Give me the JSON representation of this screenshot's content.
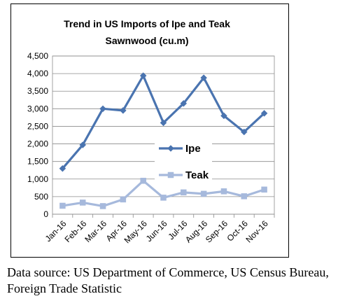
{
  "chart_data": {
    "type": "line",
    "title": "Trend in US Imports of Ipe and Teak",
    "subtitle": "Sawnwood (cu.m)",
    "categories": [
      "Jan-16",
      "Feb-16",
      "Mar-16",
      "Apr-16",
      "May-16",
      "Jun-16",
      "Jul-16",
      "Aug-16",
      "Sep-16",
      "Oct-16",
      "Nov-16"
    ],
    "series": [
      {
        "name": "Ipe",
        "values": [
          1300,
          1970,
          3000,
          2950,
          3940,
          2600,
          3150,
          3880,
          2800,
          2340,
          2870
        ],
        "color": "#4a74b0",
        "marker": "diamond"
      },
      {
        "name": "Teak",
        "values": [
          240,
          330,
          230,
          420,
          950,
          470,
          620,
          580,
          650,
          510,
          700
        ],
        "color": "#a6b9dc",
        "marker": "square"
      }
    ],
    "ylim": [
      0,
      4500
    ],
    "yticks": [
      "0",
      "500",
      "1,000",
      "1,500",
      "2,000",
      "2,500",
      "3,000",
      "3,500",
      "4,000",
      "4,500"
    ],
    "yticks_values": [
      0,
      500,
      1000,
      1500,
      2000,
      2500,
      3000,
      3500,
      4000,
      4500
    ],
    "grid": true,
    "legend": "center-right, inside plot"
  },
  "caption": {
    "line1": "Data source: US Department of Commerce, US Census Bureau,",
    "line2": "Foreign Trade Statistic"
  }
}
